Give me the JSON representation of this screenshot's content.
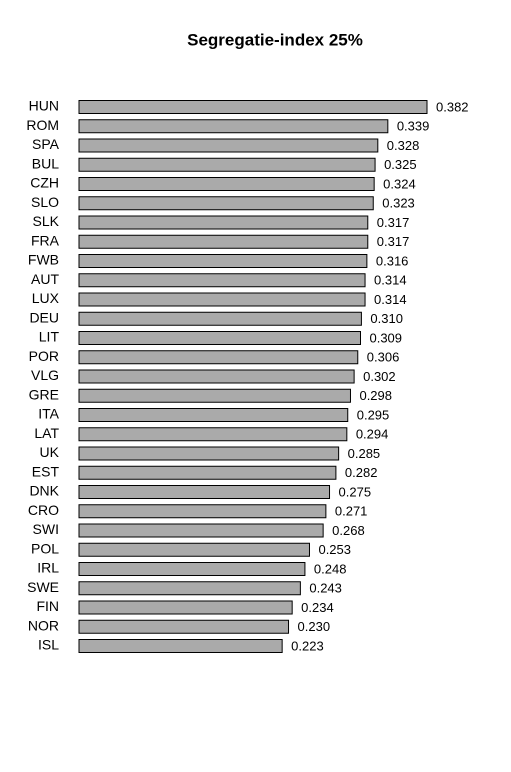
{
  "chart_data": {
    "type": "hbar",
    "title": "Segregatie-index 25%",
    "categories": [
      "HUN",
      "ROM",
      "SPA",
      "BUL",
      "CZH",
      "SLO",
      "SLK",
      "FRA",
      "FWB",
      "AUT",
      "LUX",
      "DEU",
      "LIT",
      "POR",
      "VLG",
      "GRE",
      "ITA",
      "LAT",
      "UK",
      "EST",
      "DNK",
      "CRO",
      "SWI",
      "POL",
      "IRL",
      "SWE",
      "FIN",
      "NOR",
      "ISL"
    ],
    "values": [
      0.382,
      0.339,
      0.328,
      0.325,
      0.324,
      0.323,
      0.317,
      0.317,
      0.316,
      0.314,
      0.314,
      0.31,
      0.309,
      0.306,
      0.302,
      0.298,
      0.295,
      0.294,
      0.285,
      0.282,
      0.275,
      0.271,
      0.268,
      0.253,
      0.248,
      0.243,
      0.234,
      0.23,
      0.223
    ],
    "value_labels": [
      "0.382",
      "0.339",
      "0.328",
      "0.325",
      "0.324",
      "0.323",
      "0.317",
      "0.317",
      "0.316",
      "0.314",
      "0.314",
      "0.310",
      "0.309",
      "0.306",
      "0.302",
      "0.298",
      "0.295",
      "0.294",
      "0.285",
      "0.282",
      "0.275",
      "0.271",
      "0.268",
      "0.253",
      "0.248",
      "0.243",
      "0.234",
      "0.230",
      "0.223"
    ],
    "color": "#aaaaaa"
  }
}
